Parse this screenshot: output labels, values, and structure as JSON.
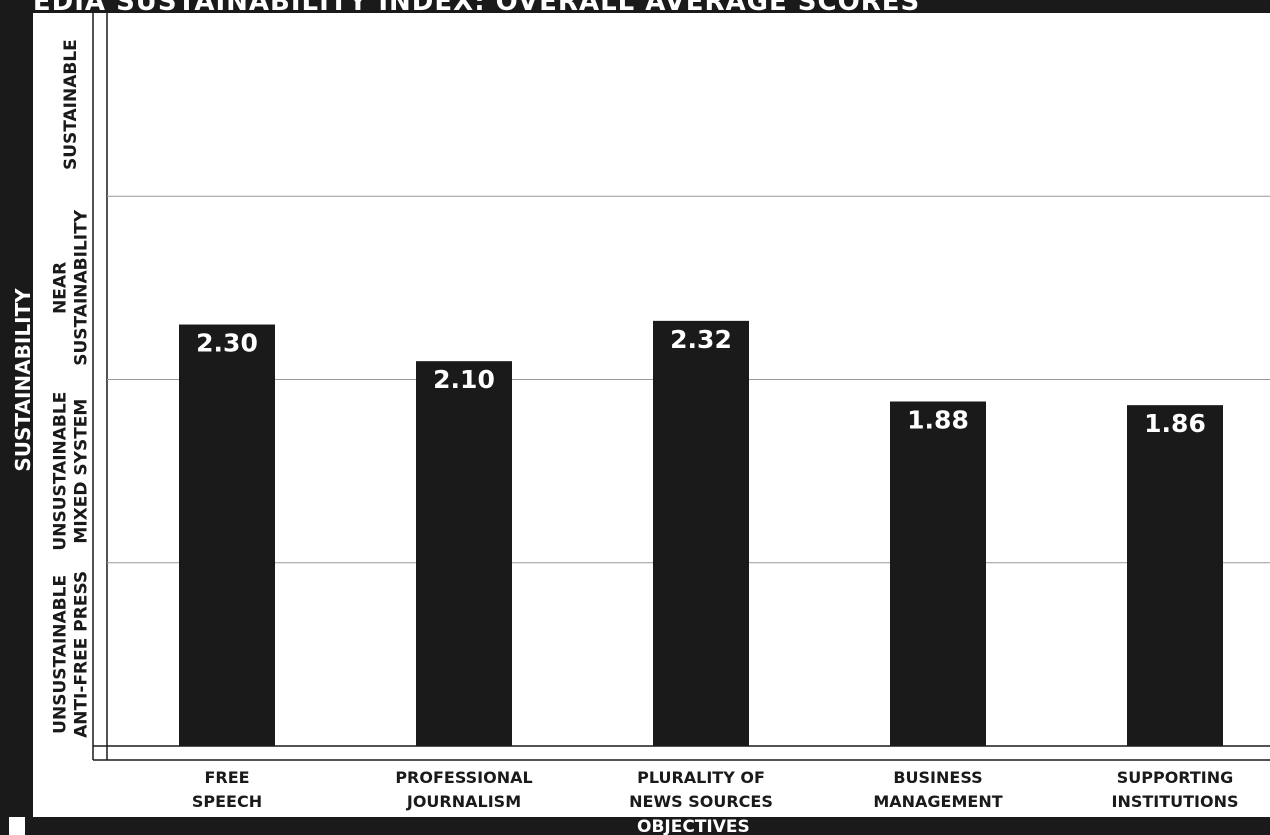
{
  "title": "MEDIA SUSTAINABILITY INDEX: OVERALL AVERAGE SCORES",
  "chart_data": {
    "type": "bar",
    "title": "MEDIA SUSTAINABILITY INDEX: OVERALL AVERAGE SCORES",
    "xlabel": "OBJECTIVES",
    "ylabel": "SUSTAINABILITY",
    "categories": [
      [
        "FREE",
        "SPEECH"
      ],
      [
        "PROFESSIONAL",
        "JOURNALISM"
      ],
      [
        "PLURALITY OF",
        "NEWS SOURCES"
      ],
      [
        "BUSINESS",
        "MANAGEMENT"
      ],
      [
        "SUPPORTING",
        "INSTITUTIONS"
      ]
    ],
    "values": [
      2.3,
      2.1,
      2.32,
      1.88,
      1.86
    ],
    "value_labels": [
      "2.30",
      "2.10",
      "2.32",
      "1.88",
      "1.86"
    ],
    "ylim": [
      0,
      4
    ],
    "y_bands": [
      [
        "UNSUSTAINABLE",
        "ANTI-FREE PRESS"
      ],
      [
        "UNSUSTAINABLE",
        "MIXED SYSTEM"
      ],
      [
        "NEAR",
        "SUSTAINABILITY"
      ],
      [
        "SUSTAINABLE"
      ]
    ],
    "grid": true,
    "legend": "none",
    "bar_color": "#1a1a1a",
    "label_color": "#ffffff"
  }
}
